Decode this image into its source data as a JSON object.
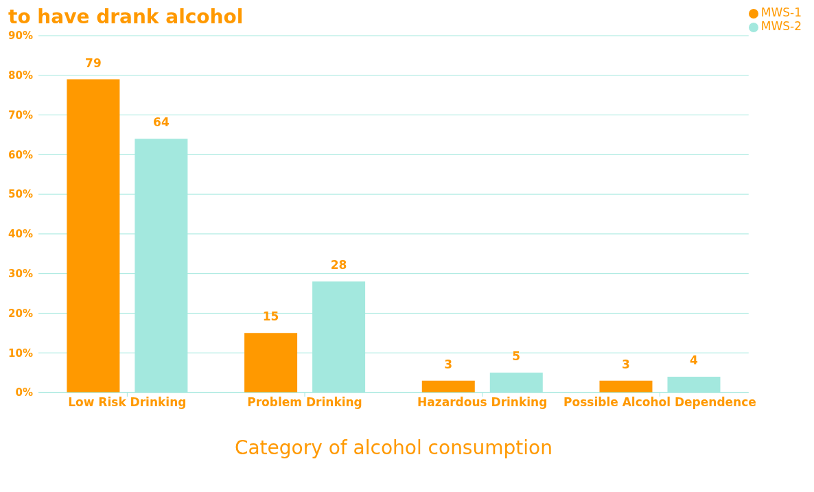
{
  "chart_data": {
    "type": "bar",
    "title": "to have drank alcohol",
    "xlabel": "Category of alcohol consumption",
    "categories": [
      "Low Risk Drinking",
      "Problem Drinking",
      "Hazardous Drinking",
      "Possible Alcohol Dependence"
    ],
    "series": [
      {
        "name": "MWS-1",
        "color": "#ff9900",
        "values": [
          79,
          15,
          3,
          3
        ]
      },
      {
        "name": "MWS-2",
        "color": "#a3e8de",
        "values": [
          64,
          28,
          5,
          4
        ]
      }
    ],
    "ylim": [
      0,
      90
    ],
    "yticks": [
      {
        "value": 0,
        "label": "0%"
      },
      {
        "value": 10,
        "label": "10%"
      },
      {
        "value": 20,
        "label": "20%"
      },
      {
        "value": 30,
        "label": "30%"
      },
      {
        "value": 40,
        "label": "40%"
      },
      {
        "value": 50,
        "label": "50%"
      },
      {
        "value": 60,
        "label": "60%"
      },
      {
        "value": 70,
        "label": "70%"
      },
      {
        "value": 80,
        "label": "80%"
      },
      {
        "value": 90,
        "label": "90%"
      }
    ],
    "grid": "y",
    "legend": "top right",
    "data_labels": true
  }
}
